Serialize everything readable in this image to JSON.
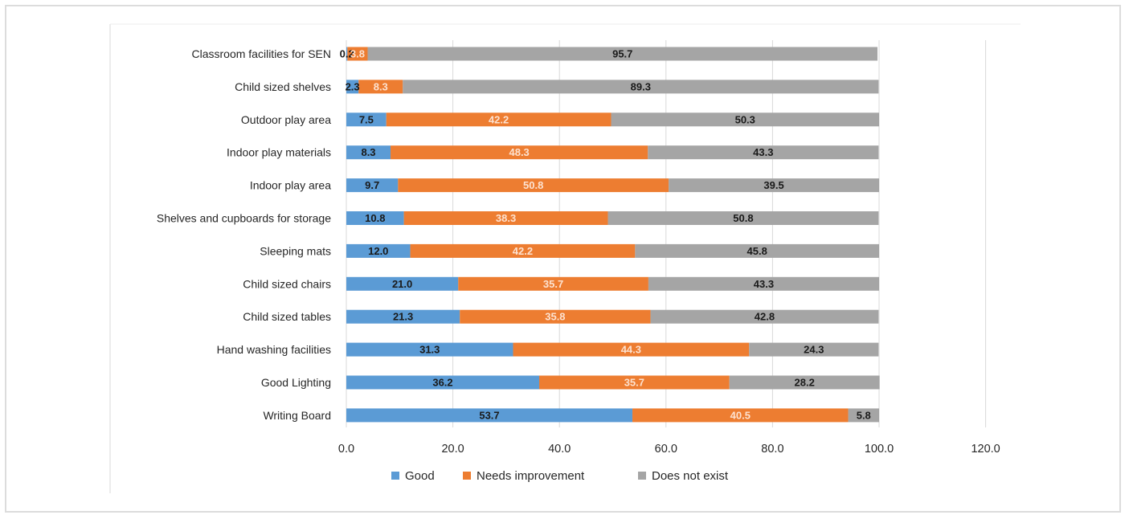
{
  "chart_data": {
    "type": "bar",
    "orientation": "horizontal",
    "stacked": true,
    "title": "",
    "xlabel": "",
    "ylabel": "",
    "xlim": [
      0,
      120
    ],
    "x_ticks": [
      "0.0",
      "20.0",
      "40.0",
      "60.0",
      "80.0",
      "100.0",
      "120.0"
    ],
    "grid": true,
    "legend_position": "bottom",
    "categories": [
      "Classroom facilities for SEN",
      "Child sized shelves",
      "Outdoor play area",
      "Indoor play materials",
      "Indoor play area",
      "Shelves and cupboards for storage",
      "Sleeping mats",
      "Child sized chairs",
      "Child sized tables",
      "Hand washing facilities",
      "Good Lighting",
      "Writing Board"
    ],
    "series": [
      {
        "name": "Good",
        "color": "#5b9bd5",
        "label_color": "#1a1a1a",
        "values": [
          0.2,
          2.3,
          7.5,
          8.3,
          9.7,
          10.8,
          12.0,
          21.0,
          21.3,
          31.3,
          36.2,
          53.7
        ],
        "labels": [
          "0.2",
          "2.3",
          "7.5",
          "8.3",
          "9.7",
          "10.8",
          "12.0",
          "21.0",
          "21.3",
          "31.3",
          "36.2",
          "53.7"
        ]
      },
      {
        "name": "Needs improvement",
        "color": "#ed7d31",
        "label_color": "#fde2d0",
        "values": [
          3.8,
          8.3,
          42.2,
          48.3,
          50.8,
          38.3,
          42.2,
          35.7,
          35.8,
          44.3,
          35.7,
          40.5
        ],
        "labels": [
          "3.8",
          "8.3",
          "42.2",
          "48.3",
          "50.8",
          "38.3",
          "42.2",
          "35.7",
          "35.8",
          "44.3",
          "35.7",
          "40.5"
        ]
      },
      {
        "name": "Does not exist",
        "color": "#a5a5a5",
        "label_color": "#1a1a1a",
        "values": [
          95.7,
          89.3,
          50.3,
          43.3,
          39.5,
          50.8,
          45.8,
          43.3,
          42.8,
          24.3,
          28.2,
          5.8
        ],
        "labels": [
          "95.7",
          "89.3",
          "50.3",
          "43.3",
          "39.5",
          "50.8",
          "45.8",
          "43.3",
          "42.8",
          "24.3",
          "28.2",
          "5.8"
        ]
      }
    ]
  }
}
